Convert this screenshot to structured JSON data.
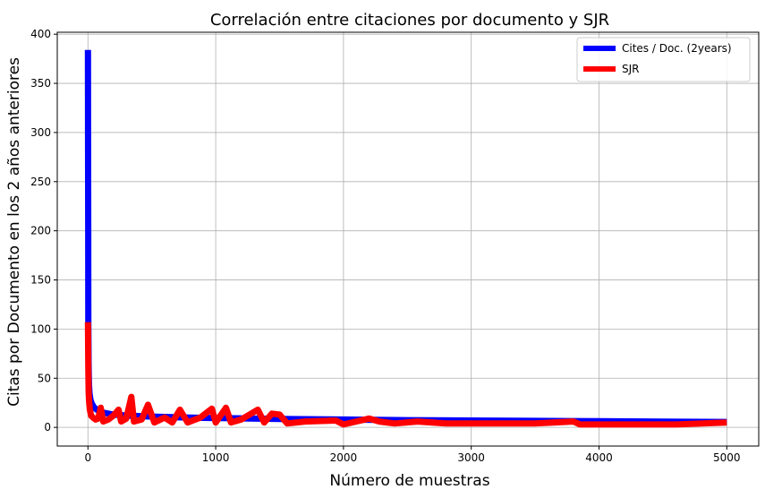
{
  "chart_data": {
    "type": "line",
    "title": "Correlación entre citaciones por documento y SJR",
    "xlabel": "Número de muestras",
    "ylabel": "Citas por Documento en los 2 años anteriores",
    "xlim": [
      -240,
      5250
    ],
    "ylim": [
      -19,
      402
    ],
    "xticks": [
      0,
      1000,
      2000,
      3000,
      4000,
      5000
    ],
    "yticks": [
      0,
      50,
      100,
      150,
      200,
      250,
      300,
      350,
      400
    ],
    "grid": true,
    "legend_position": "top-right",
    "series": [
      {
        "name": "Cites / Doc. (2years)",
        "color": "#0000ff",
        "points": [
          [
            0,
            384
          ],
          [
            1,
            300
          ],
          [
            2,
            200
          ],
          [
            3,
            110
          ],
          [
            5,
            65
          ],
          [
            8,
            45
          ],
          [
            12,
            35
          ],
          [
            20,
            28
          ],
          [
            30,
            24
          ],
          [
            50,
            20
          ],
          [
            80,
            17
          ],
          [
            120,
            15
          ],
          [
            200,
            13
          ],
          [
            300,
            12
          ],
          [
            500,
            11
          ],
          [
            800,
            10
          ],
          [
            1000,
            9.5
          ],
          [
            1500,
            8.5
          ],
          [
            2000,
            8
          ],
          [
            2500,
            7.3
          ],
          [
            3000,
            7
          ],
          [
            3500,
            6.6
          ],
          [
            4000,
            6.2
          ],
          [
            4500,
            5.8
          ],
          [
            5000,
            5.5
          ]
        ]
      },
      {
        "name": "SJR",
        "color": "#ff0000",
        "points": [
          [
            0,
            107
          ],
          [
            3,
            60
          ],
          [
            6,
            35
          ],
          [
            10,
            25
          ],
          [
            15,
            18
          ],
          [
            25,
            12
          ],
          [
            40,
            10
          ],
          [
            60,
            8
          ],
          [
            80,
            9
          ],
          [
            100,
            20
          ],
          [
            120,
            6
          ],
          [
            160,
            8
          ],
          [
            200,
            12
          ],
          [
            240,
            18
          ],
          [
            260,
            6
          ],
          [
            300,
            9
          ],
          [
            340,
            31
          ],
          [
            360,
            6
          ],
          [
            420,
            8
          ],
          [
            470,
            23
          ],
          [
            520,
            5
          ],
          [
            600,
            10
          ],
          [
            660,
            5
          ],
          [
            720,
            18
          ],
          [
            780,
            5
          ],
          [
            880,
            10
          ],
          [
            970,
            19
          ],
          [
            1000,
            5
          ],
          [
            1080,
            20
          ],
          [
            1120,
            5
          ],
          [
            1200,
            8
          ],
          [
            1330,
            18
          ],
          [
            1380,
            5
          ],
          [
            1440,
            14
          ],
          [
            1500,
            13
          ],
          [
            1560,
            4
          ],
          [
            1700,
            6
          ],
          [
            1940,
            7
          ],
          [
            2000,
            3
          ],
          [
            2100,
            6
          ],
          [
            2200,
            9
          ],
          [
            2280,
            6
          ],
          [
            2400,
            4
          ],
          [
            2580,
            6
          ],
          [
            2800,
            4
          ],
          [
            3000,
            4
          ],
          [
            3300,
            4
          ],
          [
            3500,
            4
          ],
          [
            3800,
            6
          ],
          [
            3850,
            3
          ],
          [
            4200,
            3
          ],
          [
            4600,
            3
          ],
          [
            5000,
            5
          ]
        ]
      }
    ]
  }
}
